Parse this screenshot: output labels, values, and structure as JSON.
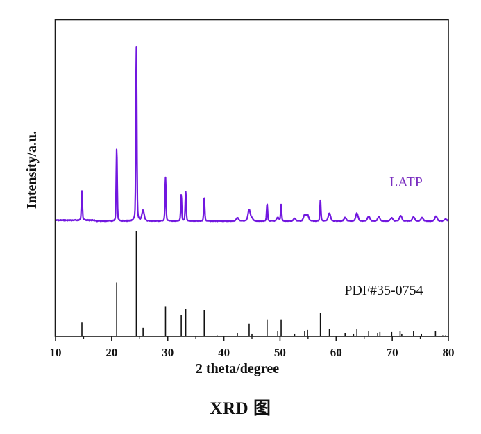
{
  "figure": {
    "caption": "XRD 图"
  },
  "colors": {
    "latp_curve": "#7117DF",
    "latp_label": "#7A2EC0",
    "reference": "#111111",
    "frame": "#1a1a1a"
  },
  "chart_data": {
    "type": "line",
    "title": "",
    "xlabel": "2 theta/degree",
    "ylabel": "Intensity/a.u.",
    "xlim": [
      10,
      80
    ],
    "x_ticks": [
      10,
      20,
      30,
      40,
      50,
      60,
      70,
      80
    ],
    "x_tick_labels": [
      "10",
      "20",
      "30",
      "40",
      "50",
      "60",
      "70",
      "80"
    ],
    "x_minor_ticks": [
      15,
      25,
      35,
      45,
      55,
      65,
      75
    ],
    "y_ticks": [],
    "grid": false,
    "legend": "inline text labels",
    "series": [
      {
        "name": "LATP",
        "label": "LATP",
        "kind": "measured pattern (line)",
        "baseline_offset": 100,
        "peaks": [
          {
            "two_theta": 14.7,
            "intensity": 17
          },
          {
            "two_theta": 20.9,
            "intensity": 42
          },
          {
            "two_theta": 24.4,
            "intensity": 100
          },
          {
            "two_theta": 25.6,
            "intensity": 6
          },
          {
            "two_theta": 29.6,
            "intensity": 25
          },
          {
            "two_theta": 32.4,
            "intensity": 15
          },
          {
            "two_theta": 33.2,
            "intensity": 17
          },
          {
            "two_theta": 36.5,
            "intensity": 14
          },
          {
            "two_theta": 42.4,
            "intensity": 2
          },
          {
            "two_theta": 44.5,
            "intensity": 6.5
          },
          {
            "two_theta": 45.0,
            "intensity": 1.5
          },
          {
            "two_theta": 47.7,
            "intensity": 10
          },
          {
            "two_theta": 49.6,
            "intensity": 2
          },
          {
            "two_theta": 50.2,
            "intensity": 9.5
          },
          {
            "two_theta": 52.6,
            "intensity": 1.5
          },
          {
            "two_theta": 54.4,
            "intensity": 3.5
          },
          {
            "two_theta": 54.9,
            "intensity": 3.5
          },
          {
            "two_theta": 57.2,
            "intensity": 12
          },
          {
            "two_theta": 58.8,
            "intensity": 4.5
          },
          {
            "two_theta": 61.6,
            "intensity": 2
          },
          {
            "two_theta": 63.7,
            "intensity": 4.5
          },
          {
            "two_theta": 65.8,
            "intensity": 2.8
          },
          {
            "two_theta": 67.6,
            "intensity": 2.4
          },
          {
            "two_theta": 69.9,
            "intensity": 1.8
          },
          {
            "two_theta": 71.5,
            "intensity": 3.2
          },
          {
            "two_theta": 73.8,
            "intensity": 2.4
          },
          {
            "two_theta": 75.3,
            "intensity": 2
          },
          {
            "two_theta": 77.8,
            "intensity": 2.8
          },
          {
            "two_theta": 79.5,
            "intensity": 1.2
          }
        ]
      },
      {
        "name": "PDF#35-0754",
        "label": "PDF#35-0754",
        "kind": "reference stick pattern",
        "baseline_offset": 0,
        "peaks": [
          {
            "two_theta": 14.7,
            "intensity": 13
          },
          {
            "two_theta": 20.9,
            "intensity": 51
          },
          {
            "two_theta": 24.4,
            "intensity": 100
          },
          {
            "two_theta": 25.6,
            "intensity": 8
          },
          {
            "two_theta": 29.6,
            "intensity": 28
          },
          {
            "two_theta": 32.4,
            "intensity": 20
          },
          {
            "two_theta": 33.2,
            "intensity": 26
          },
          {
            "two_theta": 36.5,
            "intensity": 25
          },
          {
            "two_theta": 38.8,
            "intensity": 1
          },
          {
            "two_theta": 42.4,
            "intensity": 3
          },
          {
            "two_theta": 44.5,
            "intensity": 12
          },
          {
            "two_theta": 45.0,
            "intensity": 2
          },
          {
            "two_theta": 47.7,
            "intensity": 16
          },
          {
            "two_theta": 49.6,
            "intensity": 5
          },
          {
            "two_theta": 50.2,
            "intensity": 16
          },
          {
            "two_theta": 52.6,
            "intensity": 2
          },
          {
            "two_theta": 54.4,
            "intensity": 5
          },
          {
            "two_theta": 54.9,
            "intensity": 6
          },
          {
            "two_theta": 57.2,
            "intensity": 22
          },
          {
            "two_theta": 58.8,
            "intensity": 7
          },
          {
            "two_theta": 61.6,
            "intensity": 3
          },
          {
            "two_theta": 63.1,
            "intensity": 2
          },
          {
            "two_theta": 63.7,
            "intensity": 7
          },
          {
            "two_theta": 65.8,
            "intensity": 5
          },
          {
            "two_theta": 67.4,
            "intensity": 3
          },
          {
            "two_theta": 67.8,
            "intensity": 4
          },
          {
            "two_theta": 69.9,
            "intensity": 4
          },
          {
            "two_theta": 71.4,
            "intensity": 5
          },
          {
            "two_theta": 71.7,
            "intensity": 2
          },
          {
            "two_theta": 73.8,
            "intensity": 5
          },
          {
            "two_theta": 75.2,
            "intensity": 2
          },
          {
            "two_theta": 77.7,
            "intensity": 5
          },
          {
            "two_theta": 79.0,
            "intensity": 1
          },
          {
            "two_theta": 79.5,
            "intensity": 1
          }
        ]
      }
    ],
    "annotations": [
      {
        "text": "LATP",
        "x": 72,
        "position": "above LATP pattern, right side"
      },
      {
        "text": "PDF#35-0754",
        "x": 68,
        "position": "above reference sticks, right side"
      }
    ]
  }
}
